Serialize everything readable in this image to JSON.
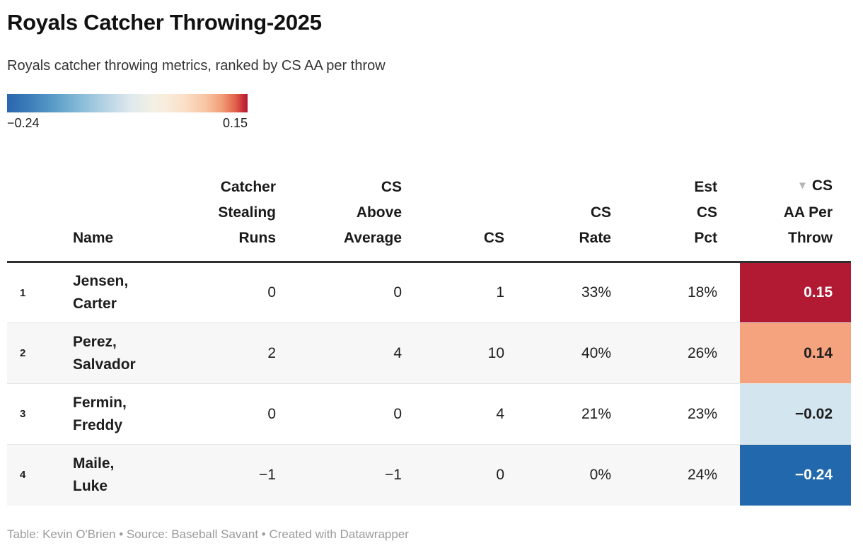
{
  "header": {
    "title": "Royals Catcher Throwing-2025",
    "subtitle": "Royals catcher throwing metrics, ranked by CS AA per throw"
  },
  "legend": {
    "min_label": "−0.24",
    "max_label": "0.15",
    "gradient_stops": [
      "#2a66ad 0%",
      "#3c7cb9 9%",
      "#5b9ec9 20%",
      "#8ebfda 32%",
      "#bad5e6 42%",
      "#dde8ee 51%",
      "#f2f0e5 60%",
      "#f8ecdc 66%",
      "#fadfc7 74%",
      "#f8c3a0 83%",
      "#f2a078 89%",
      "#e2604a 95%",
      "#c62f39 98%",
      "#b21a34 100%"
    ]
  },
  "table": {
    "sort_icon": "▼",
    "columns": {
      "rank": {
        "label": ""
      },
      "name": {
        "lines": [
          "Name"
        ]
      },
      "catcher_stealing_runs": {
        "lines": [
          "Catcher",
          "Stealing",
          "Runs"
        ]
      },
      "cs_above_average": {
        "lines": [
          "CS",
          "Above",
          "Average"
        ]
      },
      "cs": {
        "lines": [
          "CS"
        ]
      },
      "cs_rate": {
        "lines": [
          "CS",
          "Rate"
        ]
      },
      "est_cs_pct": {
        "lines": [
          "Est",
          "CS",
          "Pct"
        ]
      },
      "cs_aa_per_throw": {
        "lines": [
          "CS",
          "AA Per",
          "Throw"
        ],
        "sorted": "desc"
      }
    },
    "rows": [
      {
        "rank": "1",
        "name_line1": "Jensen,",
        "name_line2": "Carter",
        "catcher_stealing_runs": "0",
        "cs_above_average": "0",
        "cs": "1",
        "cs_rate": "33%",
        "est_cs_pct": "18%",
        "cs_aa_per_throw": "0.15",
        "cell_bg": "#b21a34",
        "cell_fg": "#ffffff"
      },
      {
        "rank": "2",
        "name_line1": "Perez,",
        "name_line2": "Salvador",
        "catcher_stealing_runs": "2",
        "cs_above_average": "4",
        "cs": "10",
        "cs_rate": "40%",
        "est_cs_pct": "26%",
        "cs_aa_per_throw": "0.14",
        "cell_bg": "#f5a27e",
        "cell_fg": "#1d1d1d"
      },
      {
        "rank": "3",
        "name_line1": "Fermin,",
        "name_line2": "Freddy",
        "catcher_stealing_runs": "0",
        "cs_above_average": "0",
        "cs": "4",
        "cs_rate": "21%",
        "est_cs_pct": "23%",
        "cs_aa_per_throw": "−0.02",
        "cell_bg": "#d3e5ef",
        "cell_fg": "#1d1d1d"
      },
      {
        "rank": "4",
        "name_line1": "Maile,",
        "name_line2": "Luke",
        "catcher_stealing_runs": "−1",
        "cs_above_average": "−1",
        "cs": "0",
        "cs_rate": "0%",
        "est_cs_pct": "24%",
        "cs_aa_per_throw": "−0.24",
        "cell_bg": "#2268ad",
        "cell_fg": "#ffffff"
      }
    ]
  },
  "footer": {
    "text": "Table: Kevin O'Brien • Source: Baseball Savant • Created with Datawrapper"
  },
  "chart_data": {
    "type": "table",
    "title": "Royals Catcher Throwing-2025",
    "subtitle": "Royals catcher throwing metrics, ranked by CS AA per throw",
    "columns": [
      "Rank",
      "Name",
      "Catcher Stealing Runs",
      "CS Above Average",
      "CS",
      "CS Rate",
      "Est CS Pct",
      "CS AA Per Throw"
    ],
    "rows": [
      [
        1,
        "Jensen, Carter",
        0,
        0,
        1,
        "33%",
        "18%",
        0.15
      ],
      [
        2,
        "Perez, Salvador",
        2,
        4,
        10,
        "40%",
        "26%",
        0.14
      ],
      [
        3,
        "Fermin, Freddy",
        0,
        0,
        4,
        "21%",
        "23%",
        -0.02
      ],
      [
        4,
        "Maile, Luke",
        -1,
        -1,
        0,
        "0%",
        "24%",
        -0.24
      ]
    ],
    "sort": {
      "column": "CS AA Per Throw",
      "direction": "desc"
    },
    "color_scale": {
      "type": "diverging",
      "applied_to": "CS AA Per Throw",
      "min": -0.24,
      "max": 0.15,
      "midpoint": 0,
      "min_color": "#2a66ad",
      "mid_color": "#f2f0e5",
      "max_color": "#b21a34"
    },
    "cell_colors": {
      "0.15": "#b21a34",
      "0.14": "#f5a27e",
      "-0.02": "#d3e5ef",
      "-0.24": "#2268ad"
    }
  }
}
